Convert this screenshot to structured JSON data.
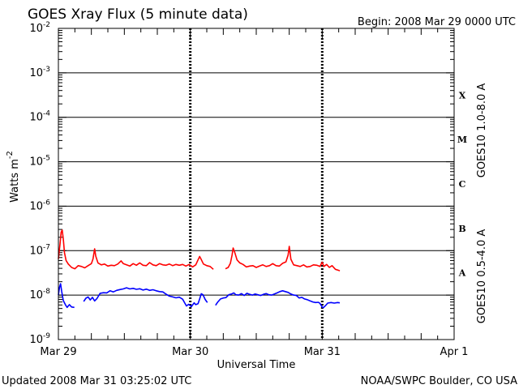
{
  "chart_data": {
    "type": "line",
    "title": "GOES Xray Flux (5 minute data)",
    "begin": "Begin:  2008 Mar 29 0000 UTC",
    "ylabel": "Watts m",
    "ylabel_sup": "-2",
    "xlabel": "Universal Time",
    "yscale": "log",
    "ylim": [
      1e-09,
      0.01
    ],
    "xlim": [
      0,
      72
    ],
    "x_unit": "hours since 2008 Mar 29 0000 UTC",
    "ytick_base": "10",
    "yticks": [
      {
        "exp": "-9",
        "value": 1e-09
      },
      {
        "exp": "-8",
        "value": 1e-08
      },
      {
        "exp": "-7",
        "value": 1e-07
      },
      {
        "exp": "-6",
        "value": 1e-06
      },
      {
        "exp": "-5",
        "value": 1e-05
      },
      {
        "exp": "-4",
        "value": 0.0001
      },
      {
        "exp": "-3",
        "value": 0.001
      },
      {
        "exp": "-2",
        "value": 0.01
      }
    ],
    "xticks": [
      {
        "label": "Mar 29",
        "x": 0
      },
      {
        "label": "Mar 30",
        "x": 24
      },
      {
        "label": "Mar 31",
        "x": 48
      },
      {
        "label": "Apr 1",
        "x": 72
      }
    ],
    "gridlines_y": [
      1e-08,
      1e-07,
      1e-06,
      1e-05,
      0.0001,
      0.001
    ],
    "flare_classes": [
      {
        "label": "A",
        "value": 1e-08
      },
      {
        "label": "B",
        "value": 1e-07
      },
      {
        "label": "C",
        "value": 1e-06
      },
      {
        "label": "M",
        "value": 1e-05
      },
      {
        "label": "X",
        "value": 0.0001
      }
    ],
    "series": [
      {
        "name": "GOES10 1.0-8.0 A",
        "color": "#ff0000",
        "points": [
          [
            0.0,
            6.5e-08
          ],
          [
            0.3,
            1.4e-07
          ],
          [
            0.5,
            2.6e-07
          ],
          [
            0.7,
            2.9e-07
          ],
          [
            0.9,
            1.8e-07
          ],
          [
            1.1,
            9e-08
          ],
          [
            1.4,
            6e-08
          ],
          [
            1.8,
            5e-08
          ],
          [
            2.4,
            4.2e-08
          ],
          [
            3.0,
            3.9e-08
          ],
          [
            3.6,
            4.6e-08
          ],
          [
            4.2,
            4.4e-08
          ],
          [
            4.8,
            4.1e-08
          ],
          [
            5.4,
            4.6e-08
          ],
          [
            6.0,
            5.1e-08
          ],
          [
            6.3,
            6.5e-08
          ],
          [
            6.6,
            1.1e-07
          ],
          [
            6.8,
            7.5e-08
          ],
          [
            7.2,
            5.3e-08
          ],
          [
            7.8,
            4.8e-08
          ],
          [
            8.4,
            5e-08
          ],
          [
            9.0,
            4.5e-08
          ],
          [
            9.6,
            4.7e-08
          ],
          [
            10.2,
            4.6e-08
          ],
          [
            10.8,
            5e-08
          ],
          [
            11.4,
            5.9e-08
          ],
          [
            11.8,
            5.1e-08
          ],
          [
            12.4,
            4.8e-08
          ],
          [
            13.0,
            4.5e-08
          ],
          [
            13.6,
            5.1e-08
          ],
          [
            14.2,
            4.7e-08
          ],
          [
            14.8,
            5.3e-08
          ],
          [
            15.4,
            4.7e-08
          ],
          [
            16.0,
            4.6e-08
          ],
          [
            16.6,
            5.4e-08
          ],
          [
            17.2,
            4.8e-08
          ],
          [
            17.8,
            4.6e-08
          ],
          [
            18.4,
            5.1e-08
          ],
          [
            19.0,
            4.8e-08
          ],
          [
            19.6,
            4.7e-08
          ],
          [
            20.2,
            5e-08
          ],
          [
            20.8,
            4.6e-08
          ],
          [
            21.4,
            4.9e-08
          ],
          [
            22.0,
            4.7e-08
          ],
          [
            22.6,
            4.9e-08
          ],
          [
            23.2,
            4.5e-08
          ],
          [
            23.8,
            4.9e-08
          ],
          [
            24.4,
            4.3e-08
          ],
          [
            25.0,
            4.8e-08
          ],
          [
            25.4,
            6.2e-08
          ],
          [
            25.7,
            7.4e-08
          ],
          [
            26.0,
            6.3e-08
          ],
          [
            26.4,
            5e-08
          ],
          [
            27.0,
            4.6e-08
          ],
          [
            27.6,
            4.4e-08
          ],
          [
            28.2,
            3.8e-08
          ],
          null,
          [
            30.4,
            3.9e-08
          ],
          [
            30.9,
            4.2e-08
          ],
          [
            31.3,
            5.2e-08
          ],
          [
            31.6,
            8e-08
          ],
          [
            31.8,
            1.15e-07
          ],
          [
            32.1,
            9e-08
          ],
          [
            32.5,
            6.2e-08
          ],
          [
            33.0,
            5.3e-08
          ],
          [
            33.6,
            4.9e-08
          ],
          [
            34.2,
            4.3e-08
          ],
          [
            34.8,
            4.5e-08
          ],
          [
            35.4,
            4.6e-08
          ],
          [
            36.0,
            4.2e-08
          ],
          [
            36.6,
            4.5e-08
          ],
          [
            37.2,
            4.8e-08
          ],
          [
            37.8,
            4.4e-08
          ],
          [
            38.4,
            4.6e-08
          ],
          [
            39.0,
            5.1e-08
          ],
          [
            39.6,
            4.6e-08
          ],
          [
            40.2,
            4.5e-08
          ],
          [
            40.8,
            5.2e-08
          ],
          [
            41.4,
            5.6e-08
          ],
          [
            41.8,
            8e-08
          ],
          [
            42.0,
            1.25e-07
          ],
          [
            42.3,
            6.4e-08
          ],
          [
            42.8,
            4.8e-08
          ],
          [
            43.4,
            4.6e-08
          ],
          [
            44.0,
            4.4e-08
          ],
          [
            44.6,
            4.8e-08
          ],
          [
            45.2,
            4.3e-08
          ],
          [
            45.8,
            4.4e-08
          ],
          [
            46.4,
            4.8e-08
          ],
          [
            47.0,
            4.7e-08
          ],
          [
            47.6,
            4.4e-08
          ],
          [
            48.0,
            5.5e-08
          ],
          [
            48.3,
            4.4e-08
          ],
          [
            48.8,
            4.9e-08
          ],
          [
            49.3,
            4.2e-08
          ],
          [
            49.8,
            4.6e-08
          ],
          [
            50.4,
            3.8e-08
          ],
          [
            51.0,
            3.6e-08
          ],
          [
            51.2,
            3.5e-08
          ]
        ]
      },
      {
        "name": "GOES10 0.5-4.0 A",
        "color": "#0000ff",
        "points": [
          [
            0.0,
            1e-08
          ],
          [
            0.2,
            1.5e-08
          ],
          [
            0.4,
            1.8e-08
          ],
          [
            0.6,
            1.2e-08
          ],
          [
            0.9,
            7.5e-09
          ],
          [
            1.3,
            6e-09
          ],
          [
            1.6,
            5.3e-09
          ],
          [
            2.0,
            6.1e-09
          ],
          [
            2.4,
            5.4e-09
          ],
          [
            2.9,
            5.3e-09
          ],
          null,
          [
            4.6,
            7.2e-09
          ],
          [
            5.0,
            8.5e-09
          ],
          [
            5.4,
            9.1e-09
          ],
          [
            5.8,
            7.8e-09
          ],
          [
            6.2,
            8.9e-09
          ],
          [
            6.6,
            7.4e-09
          ],
          [
            7.0,
            8.3e-09
          ],
          [
            7.3,
            9.6e-09
          ],
          [
            7.6,
            1.1e-08
          ],
          [
            8.2,
            1.13e-08
          ],
          [
            8.8,
            1.12e-08
          ],
          [
            9.4,
            1.25e-08
          ],
          [
            10.0,
            1.18e-08
          ],
          [
            10.6,
            1.28e-08
          ],
          [
            11.2,
            1.33e-08
          ],
          [
            11.8,
            1.38e-08
          ],
          [
            12.4,
            1.46e-08
          ],
          [
            13.0,
            1.38e-08
          ],
          [
            13.6,
            1.42e-08
          ],
          [
            14.2,
            1.35e-08
          ],
          [
            14.8,
            1.39e-08
          ],
          [
            15.4,
            1.3e-08
          ],
          [
            16.0,
            1.36e-08
          ],
          [
            16.6,
            1.28e-08
          ],
          [
            17.2,
            1.32e-08
          ],
          [
            17.8,
            1.25e-08
          ],
          [
            18.4,
            1.2e-08
          ],
          [
            19.0,
            1.18e-08
          ],
          [
            19.6,
            1.05e-08
          ],
          [
            20.2,
            9.5e-09
          ],
          [
            20.8,
            9.1e-09
          ],
          [
            21.4,
            8.7e-09
          ],
          [
            22.0,
            9e-09
          ],
          [
            22.6,
            8.1e-09
          ],
          [
            23.0,
            6.6e-09
          ],
          [
            23.3,
            5.7e-09
          ],
          [
            23.7,
            6.2e-09
          ],
          [
            24.2,
            5.5e-09
          ],
          [
            24.7,
            6.7e-09
          ],
          [
            25.0,
            6.1e-09
          ],
          [
            25.4,
            6.4e-09
          ],
          [
            25.7,
            8.2e-09
          ],
          [
            26.0,
            1.07e-08
          ],
          [
            26.3,
            1.02e-08
          ],
          [
            26.7,
            8e-09
          ],
          [
            27.1,
            6.8e-09
          ],
          null,
          [
            28.6,
            5.9e-09
          ],
          [
            29.0,
            7e-09
          ],
          [
            29.5,
            8.2e-09
          ],
          [
            30.0,
            8.6e-09
          ],
          [
            30.5,
            8.8e-09
          ],
          [
            31.0,
            1.02e-08
          ],
          [
            31.5,
            1.06e-08
          ],
          [
            31.9,
            1.12e-08
          ],
          [
            32.3,
            1.02e-08
          ],
          [
            32.8,
            1e-08
          ],
          [
            33.3,
            1.08e-08
          ],
          [
            33.8,
            9.8e-09
          ],
          [
            34.3,
            1.1e-08
          ],
          [
            34.8,
            1.04e-08
          ],
          [
            35.3,
            1e-08
          ],
          [
            35.8,
            1.06e-08
          ],
          [
            36.3,
            1.02e-08
          ],
          [
            36.8,
            9.8e-09
          ],
          [
            37.3,
            1.04e-08
          ],
          [
            37.8,
            1.08e-08
          ],
          [
            38.3,
            1.02e-08
          ],
          [
            38.8,
            1e-08
          ],
          [
            39.3,
            1.06e-08
          ],
          [
            39.8,
            1.12e-08
          ],
          [
            40.3,
            1.2e-08
          ],
          [
            40.8,
            1.25e-08
          ],
          [
            41.3,
            1.2e-08
          ],
          [
            41.8,
            1.15e-08
          ],
          [
            42.3,
            1.06e-08
          ],
          [
            42.8,
            1e-08
          ],
          [
            43.3,
            9.8e-09
          ],
          [
            43.8,
            8.6e-09
          ],
          [
            44.3,
            8.9e-09
          ],
          [
            44.8,
            8.2e-09
          ],
          [
            45.3,
            7.9e-09
          ],
          [
            45.8,
            7.4e-09
          ],
          [
            46.3,
            7e-09
          ],
          [
            46.8,
            6.8e-09
          ],
          [
            47.3,
            6.9e-09
          ],
          [
            47.6,
            6.5e-09
          ],
          [
            48.0,
            5.4e-09
          ],
          [
            48.2,
            5.2e-09
          ],
          [
            48.6,
            5.8e-09
          ],
          [
            49.0,
            6.6e-09
          ],
          [
            49.6,
            6.8e-09
          ],
          [
            50.2,
            6.6e-09
          ],
          [
            50.8,
            6.8e-09
          ],
          [
            51.2,
            6.7e-09
          ]
        ]
      }
    ],
    "footer_left": "Updated 2008 Mar 31 03:25:02 UTC",
    "footer_right": "NOAA/SWPC Boulder, CO USA"
  }
}
